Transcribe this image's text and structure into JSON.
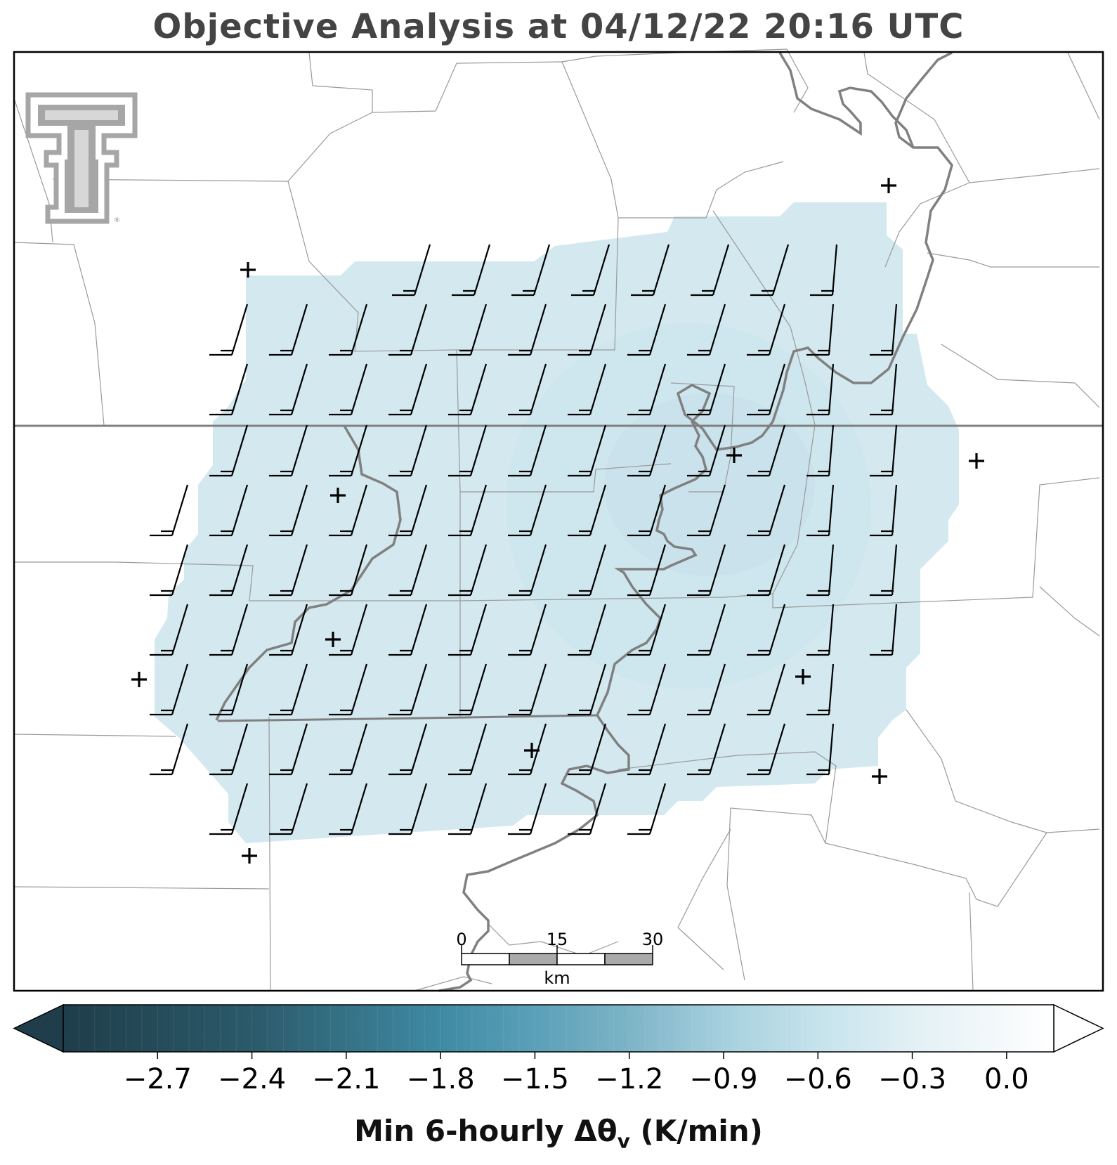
{
  "title": "Objective Analysis at 04/12/22 20:16 UTC",
  "logo": {
    "name": "texas-tech-double-t-logo",
    "registered_mark": "®"
  },
  "map": {
    "frame_color": "#000000",
    "field_color": "#d3e8ef",
    "state_border_color": "#888888",
    "river_color": "#808080",
    "county_line_color": "#9a9a9a"
  },
  "stations_marker": "+",
  "wind_barbs": {
    "description": "wind barbs on analysis grid",
    "typical_direction": "SSW",
    "color": "#000000"
  },
  "scale_bar": {
    "ticks": [
      "0",
      "15",
      "30"
    ],
    "unit": "km"
  },
  "colorbar": {
    "label_main": "Min 6-hourly Δθ",
    "label_sub": "v",
    "label_units": " (K/min)",
    "min": -3.0,
    "max": 0.15,
    "tick_labels": [
      "−2.7",
      "−2.4",
      "−2.1",
      "−1.8",
      "−1.5",
      "−1.2",
      "−0.9",
      "−0.6",
      "−0.3",
      "0.0"
    ],
    "tick_values": [
      -2.7,
      -2.4,
      -2.1,
      -1.8,
      -1.5,
      -1.2,
      -0.9,
      -0.6,
      -0.3,
      0.0
    ],
    "color_stops": [
      {
        "v": -3.0,
        "c": "#1f3d4a"
      },
      {
        "v": -2.4,
        "c": "#2b5a6a"
      },
      {
        "v": -1.8,
        "c": "#3f8aa3"
      },
      {
        "v": -1.5,
        "c": "#5aa0b8"
      },
      {
        "v": -1.2,
        "c": "#7db4c7"
      },
      {
        "v": -0.9,
        "c": "#a6d0de"
      },
      {
        "v": -0.6,
        "c": "#c5e3ec"
      },
      {
        "v": -0.3,
        "c": "#e2f0f5"
      },
      {
        "v": 0.15,
        "c": "#ffffff"
      }
    ]
  }
}
